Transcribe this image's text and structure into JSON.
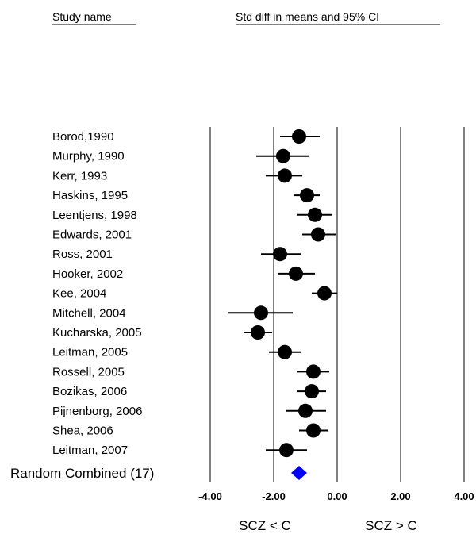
{
  "chart_data": {
    "type": "forest",
    "headers": {
      "study": "Study name",
      "effect": "Std diff in means and 95% CI"
    },
    "xlim": [
      -4,
      4
    ],
    "ticks": [
      {
        "value": -4,
        "label": "-4.00"
      },
      {
        "value": -2,
        "label": "-2.00"
      },
      {
        "value": 0,
        "label": "0.00"
      },
      {
        "value": 2,
        "label": "2.00"
      },
      {
        "value": 4,
        "label": "4.00"
      }
    ],
    "grid": true,
    "direction_labels": {
      "left": "SCZ < C",
      "right": "SCZ > C"
    },
    "studies": [
      {
        "name": "Borod,1990",
        "estimate": -1.2,
        "lower": -1.8,
        "upper": -0.55
      },
      {
        "name": "Murphy, 1990",
        "estimate": -1.7,
        "lower": -2.55,
        "upper": -0.9
      },
      {
        "name": "Kerr, 1993",
        "estimate": -1.65,
        "lower": -2.25,
        "upper": -1.1
      },
      {
        "name": "Haskins, 1995",
        "estimate": -0.95,
        "lower": -1.35,
        "upper": -0.55
      },
      {
        "name": "Leentjens, 1998",
        "estimate": -0.7,
        "lower": -1.25,
        "upper": -0.15
      },
      {
        "name": "Edwards, 2001",
        "estimate": -0.6,
        "lower": -1.1,
        "upper": -0.05
      },
      {
        "name": "Ross, 2001",
        "estimate": -1.8,
        "lower": -2.4,
        "upper": -1.15
      },
      {
        "name": "Hooker, 2002",
        "estimate": -1.3,
        "lower": -1.85,
        "upper": -0.7
      },
      {
        "name": "Kee, 2004",
        "estimate": -0.4,
        "lower": -0.8,
        "upper": 0.0
      },
      {
        "name": "Mitchell, 2004",
        "estimate": -2.4,
        "lower": -3.45,
        "upper": -1.4
      },
      {
        "name": "Kucharska, 2005",
        "estimate": -2.5,
        "lower": -2.95,
        "upper": -2.05
      },
      {
        "name": "Leitman, 2005",
        "estimate": -1.65,
        "lower": -2.15,
        "upper": -1.15
      },
      {
        "name": "Rossell, 2005",
        "estimate": -0.75,
        "lower": -1.25,
        "upper": -0.25
      },
      {
        "name": "Bozikas, 2006",
        "estimate": -0.8,
        "lower": -1.25,
        "upper": -0.35
      },
      {
        "name": "Pijnenborg, 2006",
        "estimate": -1.0,
        "lower": -1.6,
        "upper": -0.35
      },
      {
        "name": "Shea, 2006",
        "estimate": -0.75,
        "lower": -1.2,
        "upper": -0.3
      },
      {
        "name": "Leitman, 2007",
        "estimate": -1.6,
        "lower": -2.25,
        "upper": -0.95
      }
    ],
    "combined": {
      "name": "Random Combined (17)",
      "estimate": -1.2,
      "lower": -1.45,
      "upper": -0.95,
      "color": "#0000ff"
    },
    "marker_color": "#000000"
  }
}
